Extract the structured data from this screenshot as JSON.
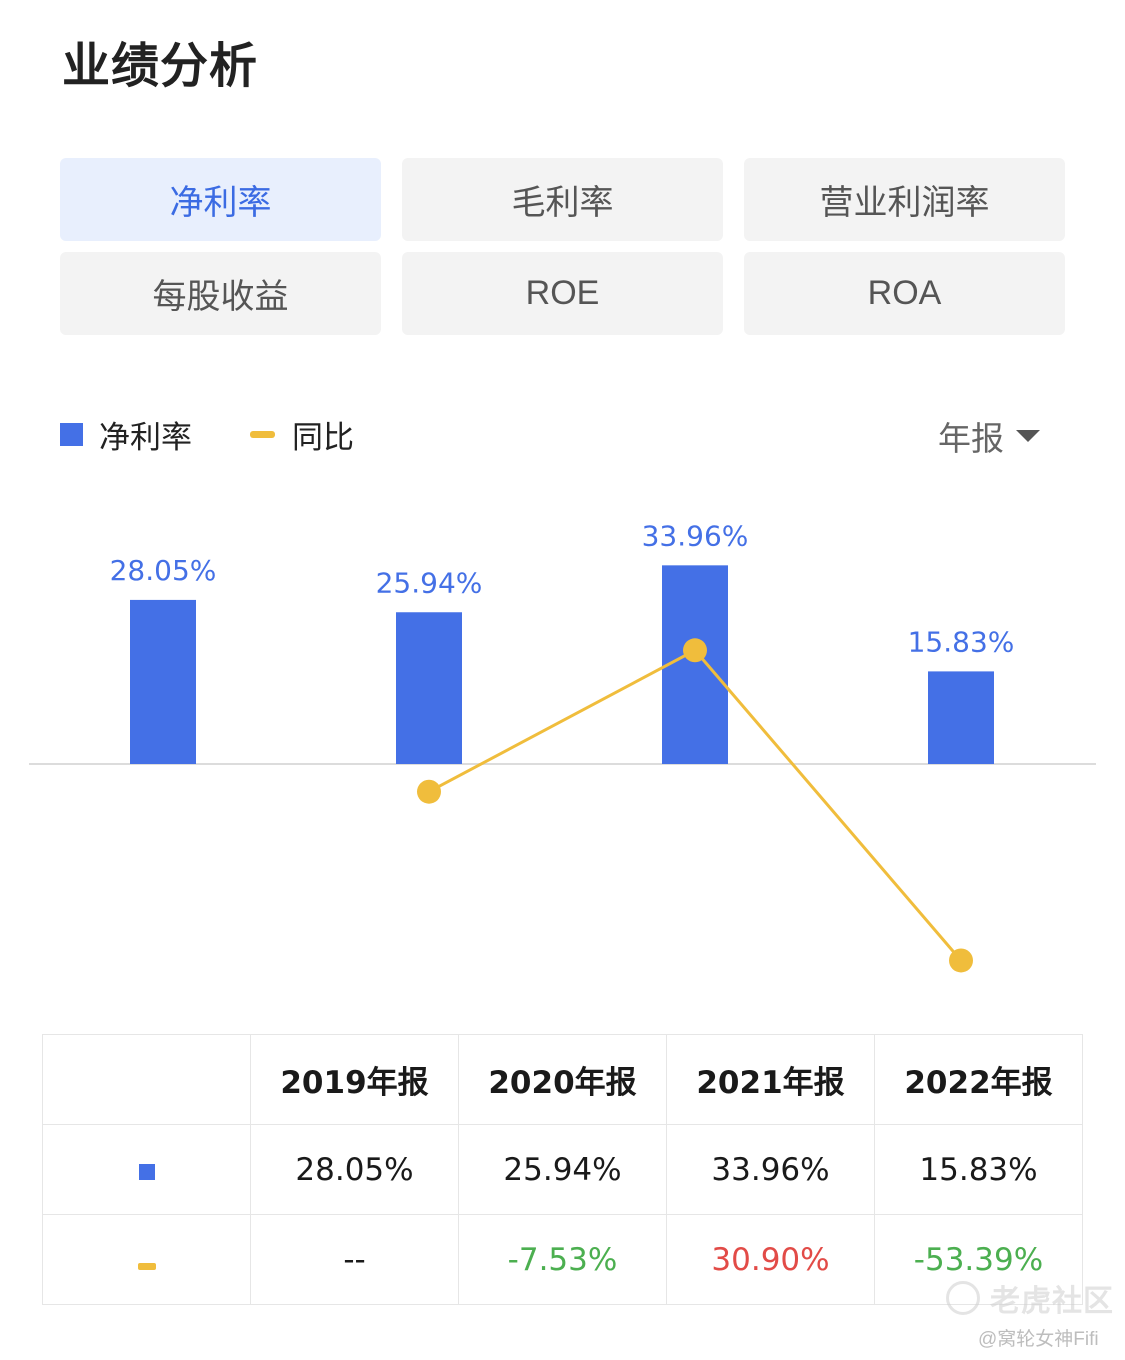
{
  "title": "业绩分析",
  "tabs": [
    {
      "label": "净利率",
      "active": true
    },
    {
      "label": "毛利率",
      "active": false
    },
    {
      "label": "营业利润率",
      "active": false
    },
    {
      "label": "每股收益",
      "active": false
    },
    {
      "label": "ROE",
      "active": false
    },
    {
      "label": "ROA",
      "active": false
    }
  ],
  "legend": {
    "bar_label": "净利率",
    "line_label": "同比"
  },
  "period_selector": {
    "label": "年报",
    "icon": "caret-down-icon"
  },
  "colors": {
    "bar": "#4470e6",
    "line": "#f0bd3c",
    "bar_label": "#4470e6",
    "positive": "#e24b47",
    "negative": "#4caf50",
    "axis": "#dcdcdc"
  },
  "chart_data": {
    "type": "bar",
    "categories": [
      "2019年报",
      "2020年报",
      "2021年报",
      "2022年报"
    ],
    "series": [
      {
        "name": "净利率",
        "type": "bar",
        "values": [
          28.05,
          25.94,
          33.96,
          15.83
        ],
        "labels": [
          "28.05%",
          "25.94%",
          "33.96%",
          "15.83%"
        ]
      },
      {
        "name": "同比",
        "type": "line",
        "values": [
          null,
          -7.53,
          30.9,
          -53.39
        ],
        "labels": [
          "--",
          "-7.53%",
          "30.90%",
          "-53.39%"
        ]
      }
    ],
    "title": "",
    "xlabel": "",
    "ylabel": "",
    "legend_position": "top-left",
    "grid": false
  },
  "table": {
    "headers": [
      "2019年报",
      "2020年报",
      "2021年报",
      "2022年报"
    ],
    "rows": [
      {
        "marker": "bar",
        "cells": [
          "28.05%",
          "25.94%",
          "33.96%",
          "15.83%"
        ]
      },
      {
        "marker": "line",
        "cells": [
          "--",
          "-7.53%",
          "30.90%",
          "-53.39%"
        ]
      }
    ]
  },
  "watermark": {
    "brand": "老虎社区",
    "user": "@窝轮女神Fifi"
  }
}
